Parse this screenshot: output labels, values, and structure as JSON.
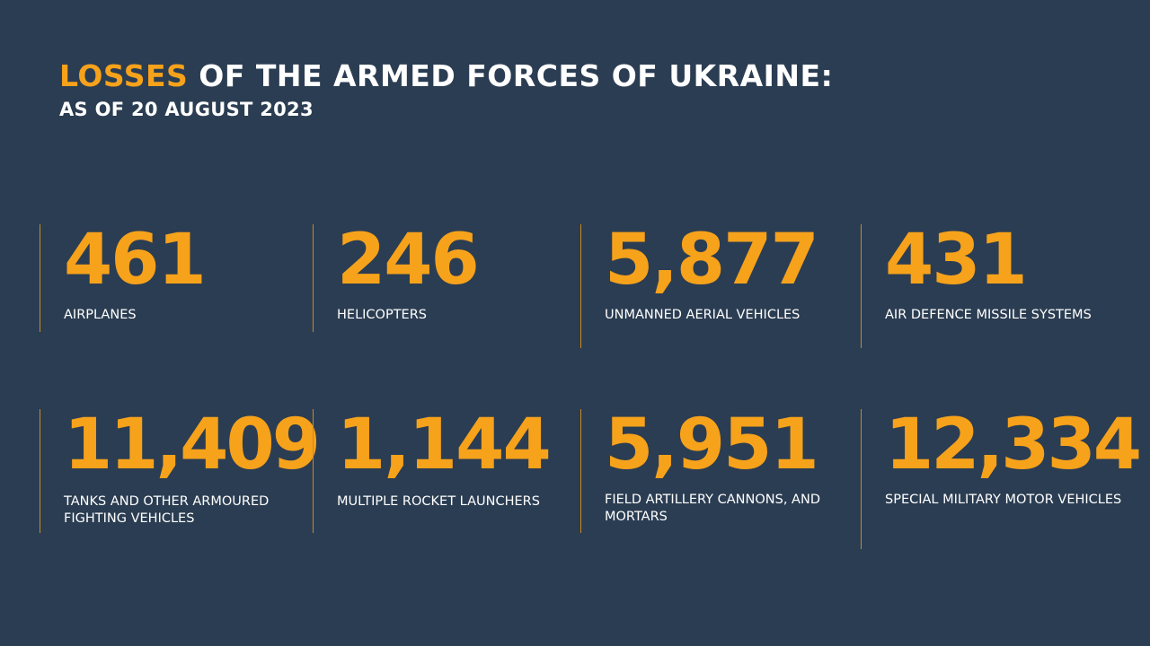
{
  "header": {
    "title_accent": "LOSSES",
    "title_rest": " OF THE ARMED FORCES OF UKRAINE:",
    "subtitle": "AS OF 20 AUGUST 2023"
  },
  "colors": {
    "background": "#2b3d52",
    "accent": "#f7a21b",
    "text": "#ffffff",
    "divider": "#c98a22"
  },
  "stats": [
    {
      "value": "461",
      "label": "AIRPLANES"
    },
    {
      "value": "246",
      "label": "HELICOPTERS"
    },
    {
      "value": "5,877",
      "label": "UNMANNED AERIAL VEHICLES"
    },
    {
      "value": "431",
      "label": "AIR DEFENCE MISSILE SYSTEMS"
    },
    {
      "value": "11,409",
      "label": "TANKS AND OTHER ARMOURED FIGHTING VEHICLES"
    },
    {
      "value": "1,144",
      "label": "MULTIPLE ROCKET LAUNCHERS"
    },
    {
      "value": "5,951",
      "label": "FIELD ARTILLERY CANNONS, AND MORTARS"
    },
    {
      "value": "12,334",
      "label": "SPECIAL MILITARY MOTOR VEHICLES"
    }
  ]
}
